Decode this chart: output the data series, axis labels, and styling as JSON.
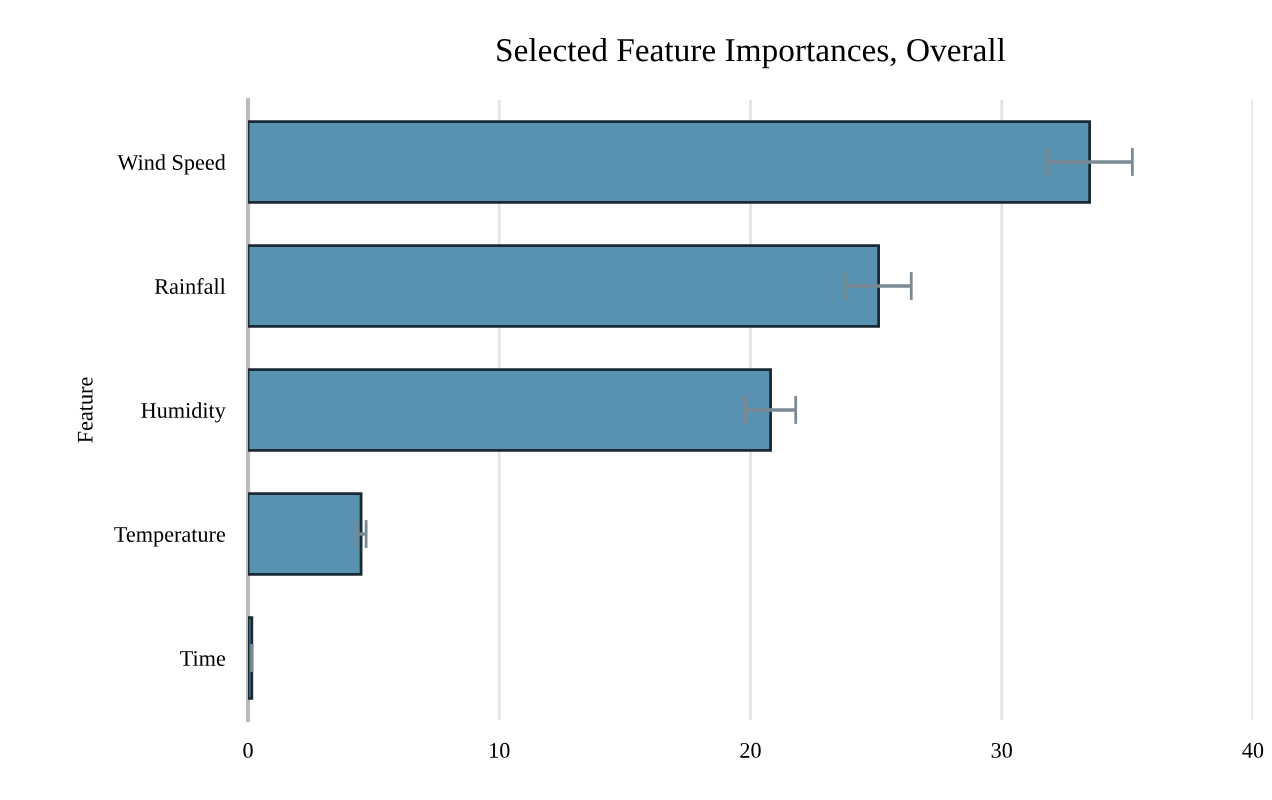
{
  "chart_data": {
    "type": "bar",
    "orientation": "horizontal",
    "title": "Selected Feature Importances, Overall",
    "ylabel": "Feature",
    "categories": [
      "Wind Speed",
      "Rainfall",
      "Humidity",
      "Temperature",
      "Time"
    ],
    "values": [
      33.5,
      25.1,
      20.8,
      4.5,
      0.15
    ],
    "errors": [
      1.7,
      1.3,
      1.0,
      0.2,
      null
    ],
    "color": "#5991b0",
    "xlim": [
      0,
      40
    ],
    "xticks": [
      0,
      10,
      20,
      30,
      40
    ],
    "grid": "x"
  }
}
